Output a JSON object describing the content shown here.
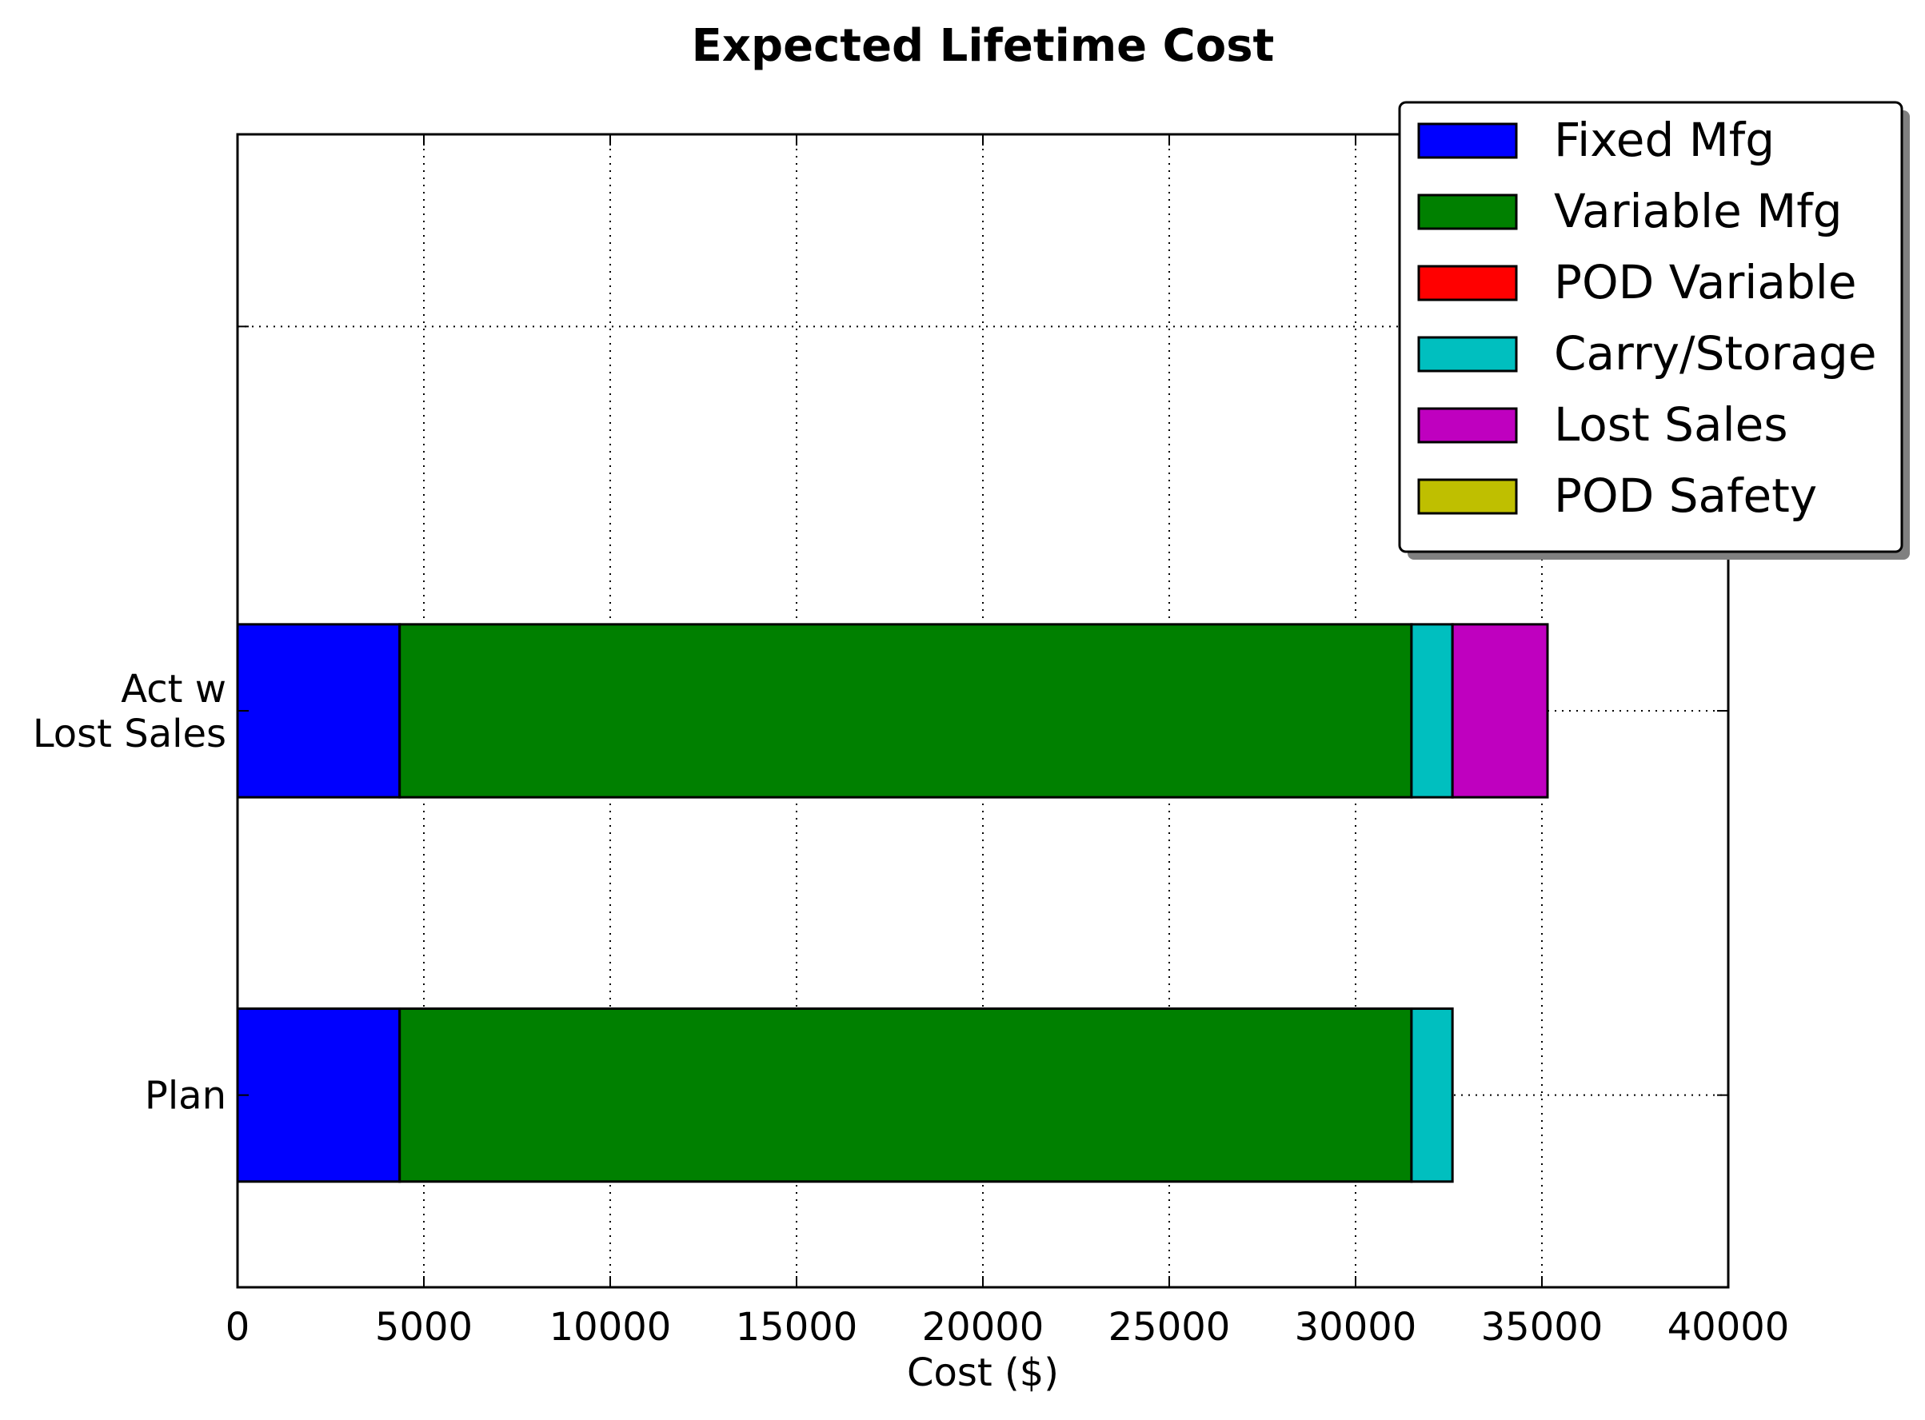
{
  "chart_data": {
    "type": "bar",
    "orientation": "horizontal",
    "stacked": true,
    "title": "Expected Lifetime Cost",
    "xlabel": "Cost ($)",
    "ylabel": "",
    "xlim": [
      0,
      40000
    ],
    "xticks": [
      "0",
      "5000",
      "10000",
      "15000",
      "20000",
      "25000",
      "30000",
      "35000",
      "40000"
    ],
    "xtick_values": [
      0,
      5000,
      10000,
      15000,
      20000,
      25000,
      30000,
      35000,
      40000
    ],
    "grid": true,
    "legend_position": "top-right",
    "categories": [
      {
        "lines": [
          "Plan"
        ]
      },
      {
        "lines": [
          "Act w",
          "Lost Sales"
        ]
      },
      {
        "lines": []
      }
    ],
    "series": [
      {
        "name": "Fixed Mfg",
        "color": "#0000ff",
        "values": [
          4350,
          4350,
          0
        ]
      },
      {
        "name": "Variable Mfg",
        "color": "#008000",
        "values": [
          27150,
          27150,
          0
        ]
      },
      {
        "name": "POD Variable",
        "color": "#ff0000",
        "values": [
          0,
          0,
          0
        ]
      },
      {
        "name": "Carry/Storage",
        "color": "#00bfbf",
        "values": [
          1100,
          1100,
          0
        ]
      },
      {
        "name": "Lost Sales",
        "color": "#bf00bf",
        "values": [
          0,
          2550,
          0
        ]
      },
      {
        "name": "POD Safety",
        "color": "#bfbf00",
        "values": [
          0,
          0,
          0
        ]
      }
    ]
  }
}
